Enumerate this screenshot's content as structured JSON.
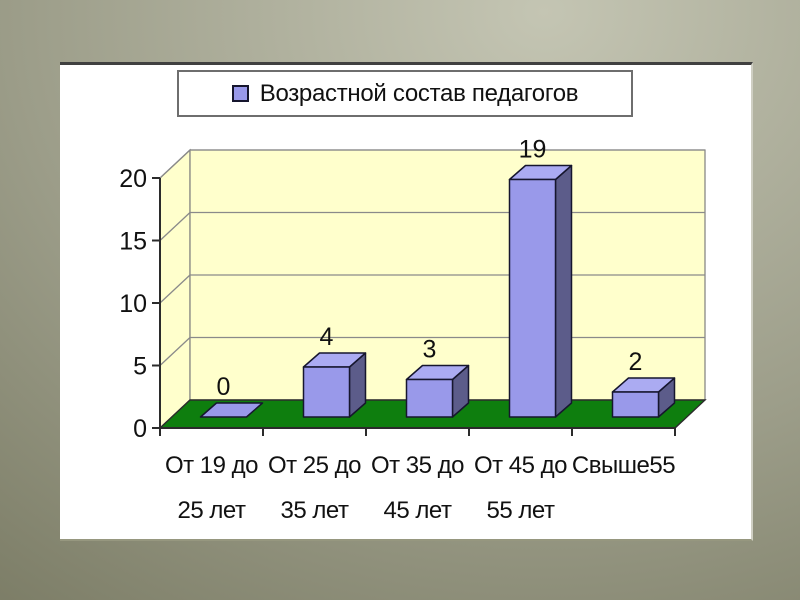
{
  "legend": {
    "label": "Возрастной состав педагогов"
  },
  "chart_data": {
    "type": "bar",
    "style": "3d-column",
    "title": "",
    "legend_label": "Возрастной состав педагогов",
    "legend_position": "top",
    "grid": true,
    "categories": [
      "От 19 до 25 лет",
      "От 25 до 35 лет",
      "От 35 до 45 лет",
      "От 45 до 55 лет",
      "Свыше55"
    ],
    "category_lines": [
      [
        "От 19 до",
        "25 лет"
      ],
      [
        "От 25 до",
        "35 лет"
      ],
      [
        "От 35 до",
        "45 лет"
      ],
      [
        "От 45 до",
        "55 лет"
      ],
      [
        "Свыше55"
      ]
    ],
    "values": [
      0,
      4,
      3,
      19,
      2
    ],
    "ylim": [
      0,
      20
    ],
    "yticks": [
      0,
      5,
      10,
      15,
      20
    ],
    "xlabel": "",
    "ylabel": "",
    "colors": {
      "bar_front": "#9999ea",
      "bar_top": "#ababf2",
      "bar_side": "#5c5c8a",
      "bar_outline": "#16162e",
      "wall": "#ffffcc",
      "wall_border": "#7e7e7e",
      "floor": "#0e7e0e",
      "gridline": "#8a8a8a",
      "axis": "#2b2b2b",
      "text": "#111111",
      "panel": "#ffffff",
      "background_center": "#c4c5b3",
      "background_mid": "#9c9d89",
      "background_edge": "#767760"
    }
  }
}
